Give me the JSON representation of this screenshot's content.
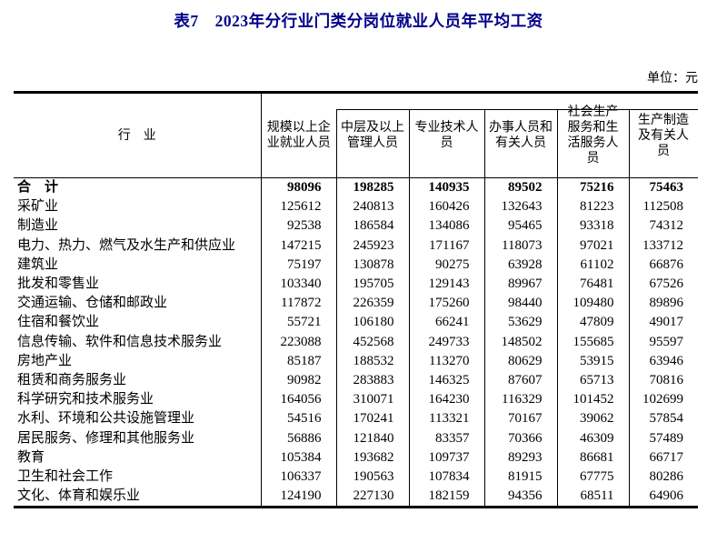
{
  "title": "表7　2023年分行业门类分岗位就业人员年平均工资",
  "unit_label": "单位：元",
  "colors": {
    "title_blue": "#00008B",
    "text": "#000000",
    "border": "#000000"
  },
  "table": {
    "row_header": "行　业",
    "columns": [
      "规模以上企业就业人员",
      "中层及以上管理人员",
      "专业技术人员",
      "办事人员和有关人员",
      "社会生产服务和生活服务人员",
      "生产制造及有关人员"
    ],
    "rows": [
      {
        "industry": "合　计",
        "bold": true,
        "values": [
          98096,
          198285,
          140935,
          89502,
          75216,
          75463
        ]
      },
      {
        "industry": "采矿业",
        "bold": false,
        "values": [
          125612,
          240813,
          160426,
          132643,
          81223,
          112508
        ]
      },
      {
        "industry": "制造业",
        "bold": false,
        "values": [
          92538,
          186584,
          134086,
          95465,
          93318,
          74312
        ]
      },
      {
        "industry": "电力、热力、燃气及水生产和供应业",
        "bold": false,
        "values": [
          147215,
          245923,
          171167,
          118073,
          97021,
          133712
        ]
      },
      {
        "industry": "建筑业",
        "bold": false,
        "values": [
          75197,
          130878,
          90275,
          63928,
          61102,
          66876
        ]
      },
      {
        "industry": "批发和零售业",
        "bold": false,
        "values": [
          103340,
          195705,
          129143,
          89967,
          76481,
          67526
        ]
      },
      {
        "industry": "交通运输、仓储和邮政业",
        "bold": false,
        "values": [
          117872,
          226359,
          175260,
          98440,
          109480,
          89896
        ]
      },
      {
        "industry": "住宿和餐饮业",
        "bold": false,
        "values": [
          55721,
          106180,
          66241,
          53629,
          47809,
          49017
        ]
      },
      {
        "industry": "信息传输、软件和信息技术服务业",
        "bold": false,
        "values": [
          223088,
          452568,
          249733,
          148502,
          155685,
          95597
        ]
      },
      {
        "industry": "房地产业",
        "bold": false,
        "values": [
          85187,
          188532,
          113270,
          80629,
          53915,
          63946
        ]
      },
      {
        "industry": "租赁和商务服务业",
        "bold": false,
        "values": [
          90982,
          283883,
          146325,
          87607,
          65713,
          70816
        ]
      },
      {
        "industry": "科学研究和技术服务业",
        "bold": false,
        "values": [
          164056,
          310071,
          164230,
          116329,
          101452,
          102699
        ]
      },
      {
        "industry": "水利、环境和公共设施管理业",
        "bold": false,
        "values": [
          54516,
          170241,
          113321,
          70167,
          39062,
          57854
        ]
      },
      {
        "industry": "居民服务、修理和其他服务业",
        "bold": false,
        "values": [
          56886,
          121840,
          83357,
          70366,
          46309,
          57489
        ]
      },
      {
        "industry": "教育",
        "bold": false,
        "values": [
          105384,
          193682,
          109737,
          89293,
          86681,
          66717
        ]
      },
      {
        "industry": "卫生和社会工作",
        "bold": false,
        "values": [
          106337,
          190563,
          107834,
          81915,
          67775,
          80286
        ]
      },
      {
        "industry": "文化、体育和娱乐业",
        "bold": false,
        "values": [
          124190,
          227130,
          182159,
          94356,
          68511,
          64906
        ]
      }
    ]
  }
}
